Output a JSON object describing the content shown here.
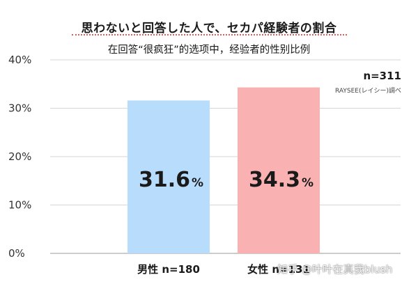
{
  "title": "思わないと回答した人で、セカパ経験者の割合",
  "subtitle": "在回答“很疯狂”的选项中，经验者的性别比例",
  "sample_size": "n=311",
  "source": "RAYSEE(レイシー)調べ",
  "watermark": "知乎 @叶叶在真我blush",
  "colors": {
    "male_bar": "#b8dcfb",
    "female_bar": "#f9b1b1",
    "grid": "#d6d6d6"
  },
  "chart_data": {
    "type": "bar",
    "categories": [
      "男性 n=180",
      "女性 n=131"
    ],
    "values": [
      31.6,
      34.3
    ],
    "value_labels": [
      "31.6",
      "34.3"
    ],
    "value_unit": "%",
    "y_ticks": [
      "0%",
      "10%",
      "20%",
      "30%",
      "40%"
    ],
    "ylim": [
      0,
      40
    ],
    "grid": true,
    "title": "思わないと回答した人で、セカパ経験者の割合",
    "xlabel": "",
    "ylabel": ""
  }
}
